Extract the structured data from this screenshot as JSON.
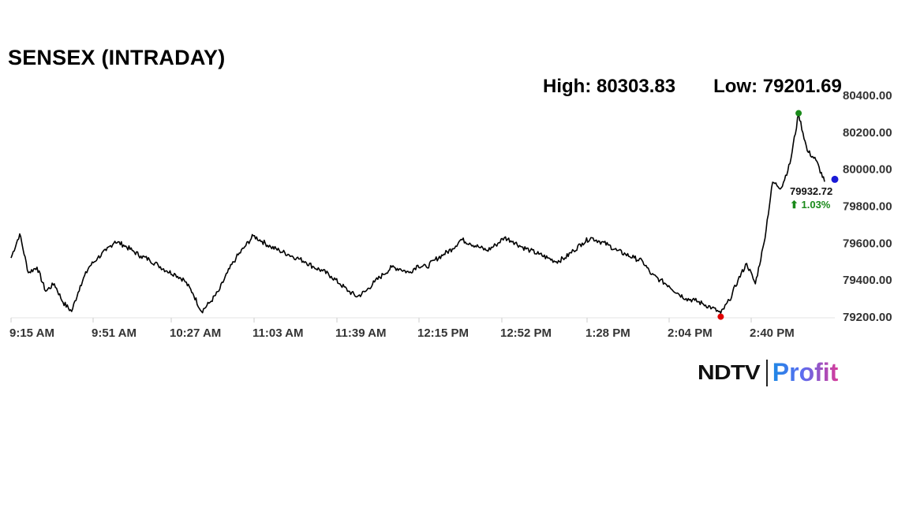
{
  "title": "SENSEX (INTRADAY)",
  "high_label": "High: 80303.83",
  "low_label": "Low: 79201.69",
  "brand": {
    "ndtv": "NDTV",
    "profit": "Profit"
  },
  "colors": {
    "line": "#000000",
    "high_marker": "#1a8a1a",
    "low_marker": "#e00000",
    "last_marker": "#1a1ad6",
    "change": "#1a8a1a"
  },
  "chart_data": {
    "type": "line",
    "title": "SENSEX (INTRADAY)",
    "ylim": [
      79200,
      80400
    ],
    "y_ticks": [
      "80400.00",
      "80200.00",
      "80000.00",
      "79800.00",
      "79600.00",
      "79400.00",
      "79200.00"
    ],
    "x_ticks": [
      "9:15 AM",
      "9:51 AM",
      "10:27 AM",
      "11:03 AM",
      "11:39 AM",
      "12:15 PM",
      "12:52 PM",
      "1:28 PM",
      "2:04 PM",
      "2:40 PM"
    ],
    "grid": false,
    "high": 80303.83,
    "low": 79201.69,
    "last_value": "79932.72",
    "change": "⬆ 1.03%",
    "series": [
      {
        "x": [
          0,
          4,
          8,
          12,
          16,
          20,
          24,
          28,
          32,
          36,
          40,
          44,
          48,
          52,
          56,
          60,
          64,
          68,
          72,
          76,
          80,
          84,
          88,
          92,
          96,
          100,
          104,
          108,
          112,
          116,
          120,
          124,
          128,
          132,
          136,
          140,
          144,
          148,
          152,
          156,
          160,
          164,
          168,
          172,
          176,
          180,
          184,
          188,
          192,
          196,
          200,
          204,
          208,
          212,
          216,
          220,
          224,
          228,
          232,
          236,
          240,
          244,
          248,
          252,
          256,
          260,
          264,
          268,
          272,
          276,
          280,
          284,
          288,
          292,
          296,
          300,
          304,
          308,
          312,
          316,
          320,
          324,
          328,
          332,
          336,
          340,
          344,
          348,
          352,
          356,
          360,
          364,
          368,
          372,
          376
        ],
        "values": [
          79520,
          79650,
          79440,
          79470,
          79340,
          79380,
          79280,
          79230,
          79370,
          79470,
          79520,
          79560,
          79610,
          79590,
          79560,
          79530,
          79510,
          79480,
          79450,
          79430,
          79400,
          79330,
          79230,
          79280,
          79340,
          79440,
          79520,
          79580,
          79640,
          79610,
          79580,
          79560,
          79540,
          79520,
          79500,
          79470,
          79450,
          79420,
          79380,
          79340,
          79310,
          79340,
          79390,
          79430,
          79470,
          79460,
          79440,
          79480,
          79470,
          79510,
          79540,
          79570,
          79620,
          79600,
          79580,
          79560,
          79590,
          79630,
          79610,
          79580,
          79560,
          79540,
          79520,
          79500,
          79520,
          79560,
          79600,
          79630,
          79610,
          79590,
          79560,
          79540,
          79520,
          79500,
          79430,
          79400,
          79370,
          79330,
          79300,
          79290,
          79270,
          79250,
          79220,
          79290,
          79400,
          79490,
          79380,
          79600,
          79930,
          79900,
          80030,
          80300,
          80100,
          80050,
          79932.72
        ]
      }
    ]
  }
}
